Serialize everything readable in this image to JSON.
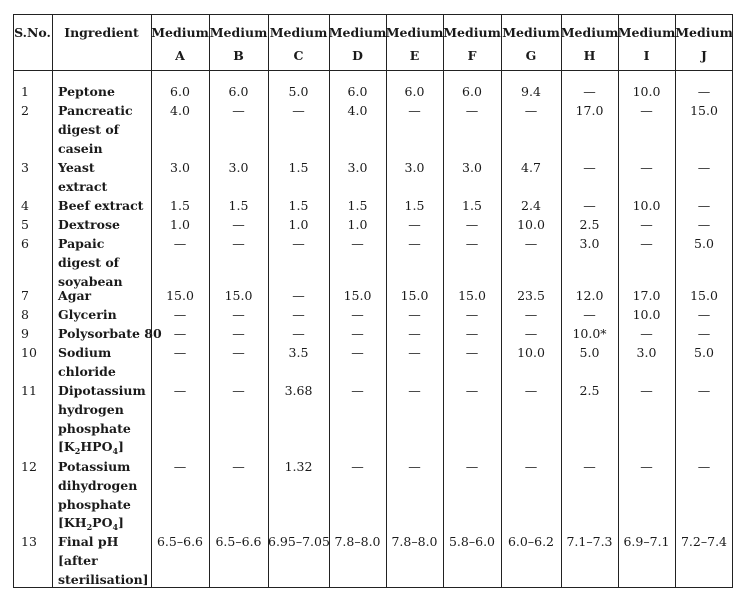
{
  "table": {
    "headers": {
      "sno": "S.No.",
      "ingredient": "Ingredient",
      "mediums": [
        {
          "top": "Medium",
          "bottom": "A"
        },
        {
          "top": "Medium",
          "bottom": "B"
        },
        {
          "top": "Medium",
          "bottom": "C"
        },
        {
          "top": "Medium",
          "bottom": "D"
        },
        {
          "top": "Medium",
          "bottom": "E"
        },
        {
          "top": "Medium",
          "bottom": "F"
        },
        {
          "top": "Medium",
          "bottom": "G"
        },
        {
          "top": "Medium",
          "bottom": "H"
        },
        {
          "top": "Medium",
          "bottom": "I"
        },
        {
          "top": "Medium",
          "bottom": "J"
        }
      ]
    },
    "rows": [
      {
        "sno": "1",
        "lines": [
          "Peptone"
        ],
        "values": [
          "6.0",
          "6.0",
          "5.0",
          "6.0",
          "6.0",
          "6.0",
          "9.4",
          "—",
          "10.0",
          "—"
        ]
      },
      {
        "sno": "2",
        "lines": [
          "Pancreatic",
          "digest of",
          "casein"
        ],
        "values": [
          "4.0",
          "—",
          "—",
          "4.0",
          "—",
          "—",
          "—",
          "17.0",
          "—",
          "15.0"
        ]
      },
      {
        "sno": "3",
        "lines": [
          "Yeast",
          "extract"
        ],
        "values": [
          "3.0",
          "3.0",
          "1.5",
          "3.0",
          "3.0",
          "3.0",
          "4.7",
          "—",
          "—",
          "—"
        ]
      },
      {
        "sno": "4",
        "lines": [
          "Beef extract"
        ],
        "values": [
          "1.5",
          "1.5",
          "1.5",
          "1.5",
          "1.5",
          "1.5",
          "2.4",
          "—",
          "10.0",
          "—"
        ]
      },
      {
        "sno": "5",
        "lines": [
          "Dextrose"
        ],
        "values": [
          "1.0",
          "—",
          "1.0",
          "1.0",
          "—",
          "—",
          "10.0",
          "2.5",
          "—",
          "—"
        ]
      },
      {
        "sno": "6",
        "lines": [
          "Papaic",
          "digest of",
          "soyabean"
        ],
        "values": [
          "—",
          "—",
          "—",
          "—",
          "—",
          "—",
          "—",
          "3.0",
          "—",
          "5.0"
        ]
      },
      {
        "sno": "7",
        "lines": [
          "Agar"
        ],
        "values": [
          "15.0",
          "15.0",
          "—",
          "15.0",
          "15.0",
          "15.0",
          "23.5",
          "12.0",
          "17.0",
          "15.0"
        ]
      },
      {
        "sno": "8",
        "lines": [
          "Glycerin"
        ],
        "values": [
          "—",
          "—",
          "—",
          "—",
          "—",
          "—",
          "—",
          "—",
          "10.0",
          "—"
        ]
      },
      {
        "sno": "9",
        "lines": [
          "Polysorbate 80"
        ],
        "values": [
          "—",
          "—",
          "—",
          "—",
          "—",
          "—",
          "—",
          "10.0*",
          "—",
          "—"
        ]
      },
      {
        "sno": "10",
        "lines": [
          "Sodium",
          "chloride"
        ],
        "values": [
          "—",
          "—",
          "3.5",
          "—",
          "—",
          "—",
          "10.0",
          "5.0",
          "3.0",
          "5.0"
        ]
      },
      {
        "sno": "11",
        "lines": [
          "Dipotassium",
          "hydrogen",
          "phosphate"
        ],
        "formula": {
          "pre": "[K",
          "s1": "2",
          "mid": "HPO",
          "s2": "4",
          "post": "]"
        },
        "values": [
          "—",
          "—",
          "3.68",
          "—",
          "—",
          "—",
          "—",
          "2.5",
          "—",
          "—"
        ]
      },
      {
        "sno": "12",
        "lines": [
          "Potassium",
          "dihydrogen",
          "phosphate"
        ],
        "formula": {
          "pre": "[KH",
          "s1": "2",
          "mid": "PO",
          "s2": "4",
          "post": "]"
        },
        "values": [
          "—",
          "—",
          "1.32",
          "—",
          "—",
          "—",
          "—",
          "—",
          "—",
          "—"
        ]
      },
      {
        "sno": "13",
        "lines": [
          "Final pH",
          "[after",
          "sterilisation]"
        ],
        "values": [
          "6.5–6.6",
          "6.5–6.6",
          "6.95–7.05",
          "7.8–8.0",
          "7.8–8.0",
          "5.8–6.0",
          "6.0–6.2",
          "7.1–7.3",
          "6.9–7.1",
          "7.2–7.4"
        ]
      }
    ]
  }
}
